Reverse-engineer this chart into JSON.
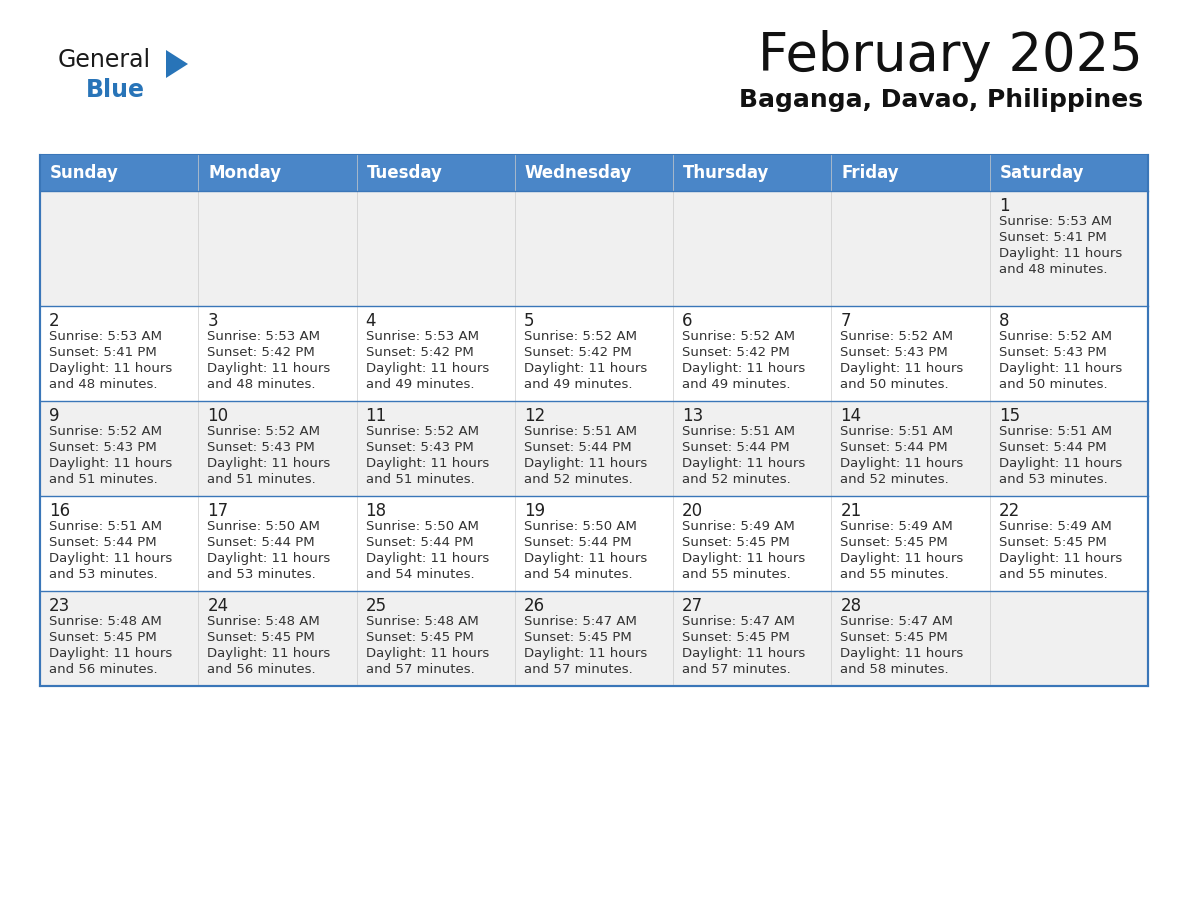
{
  "title": "February 2025",
  "subtitle": "Baganga, Davao, Philippines",
  "days_of_week": [
    "Sunday",
    "Monday",
    "Tuesday",
    "Wednesday",
    "Thursday",
    "Friday",
    "Saturday"
  ],
  "header_bg": "#4a86c8",
  "header_text_color": "#ffffff",
  "cell_bg_odd": "#f0f0f0",
  "cell_bg_even": "#ffffff",
  "border_color": "#3a76b8",
  "text_color": "#333333",
  "logo_general_color": "#1a1a1a",
  "logo_blue_color": "#2874b8",
  "logo_triangle_color": "#2874b8",
  "calendar_data": [
    [
      null,
      null,
      null,
      null,
      null,
      null,
      {
        "day": 1,
        "sunrise": "5:53 AM",
        "sunset": "5:41 PM",
        "daylight_hours": 11,
        "daylight_minutes": 48
      }
    ],
    [
      {
        "day": 2,
        "sunrise": "5:53 AM",
        "sunset": "5:41 PM",
        "daylight_hours": 11,
        "daylight_minutes": 48
      },
      {
        "day": 3,
        "sunrise": "5:53 AM",
        "sunset": "5:42 PM",
        "daylight_hours": 11,
        "daylight_minutes": 48
      },
      {
        "day": 4,
        "sunrise": "5:53 AM",
        "sunset": "5:42 PM",
        "daylight_hours": 11,
        "daylight_minutes": 49
      },
      {
        "day": 5,
        "sunrise": "5:52 AM",
        "sunset": "5:42 PM",
        "daylight_hours": 11,
        "daylight_minutes": 49
      },
      {
        "day": 6,
        "sunrise": "5:52 AM",
        "sunset": "5:42 PM",
        "daylight_hours": 11,
        "daylight_minutes": 49
      },
      {
        "day": 7,
        "sunrise": "5:52 AM",
        "sunset": "5:43 PM",
        "daylight_hours": 11,
        "daylight_minutes": 50
      },
      {
        "day": 8,
        "sunrise": "5:52 AM",
        "sunset": "5:43 PM",
        "daylight_hours": 11,
        "daylight_minutes": 50
      }
    ],
    [
      {
        "day": 9,
        "sunrise": "5:52 AM",
        "sunset": "5:43 PM",
        "daylight_hours": 11,
        "daylight_minutes": 51
      },
      {
        "day": 10,
        "sunrise": "5:52 AM",
        "sunset": "5:43 PM",
        "daylight_hours": 11,
        "daylight_minutes": 51
      },
      {
        "day": 11,
        "sunrise": "5:52 AM",
        "sunset": "5:43 PM",
        "daylight_hours": 11,
        "daylight_minutes": 51
      },
      {
        "day": 12,
        "sunrise": "5:51 AM",
        "sunset": "5:44 PM",
        "daylight_hours": 11,
        "daylight_minutes": 52
      },
      {
        "day": 13,
        "sunrise": "5:51 AM",
        "sunset": "5:44 PM",
        "daylight_hours": 11,
        "daylight_minutes": 52
      },
      {
        "day": 14,
        "sunrise": "5:51 AM",
        "sunset": "5:44 PM",
        "daylight_hours": 11,
        "daylight_minutes": 52
      },
      {
        "day": 15,
        "sunrise": "5:51 AM",
        "sunset": "5:44 PM",
        "daylight_hours": 11,
        "daylight_minutes": 53
      }
    ],
    [
      {
        "day": 16,
        "sunrise": "5:51 AM",
        "sunset": "5:44 PM",
        "daylight_hours": 11,
        "daylight_minutes": 53
      },
      {
        "day": 17,
        "sunrise": "5:50 AM",
        "sunset": "5:44 PM",
        "daylight_hours": 11,
        "daylight_minutes": 53
      },
      {
        "day": 18,
        "sunrise": "5:50 AM",
        "sunset": "5:44 PM",
        "daylight_hours": 11,
        "daylight_minutes": 54
      },
      {
        "day": 19,
        "sunrise": "5:50 AM",
        "sunset": "5:44 PM",
        "daylight_hours": 11,
        "daylight_minutes": 54
      },
      {
        "day": 20,
        "sunrise": "5:49 AM",
        "sunset": "5:45 PM",
        "daylight_hours": 11,
        "daylight_minutes": 55
      },
      {
        "day": 21,
        "sunrise": "5:49 AM",
        "sunset": "5:45 PM",
        "daylight_hours": 11,
        "daylight_minutes": 55
      },
      {
        "day": 22,
        "sunrise": "5:49 AM",
        "sunset": "5:45 PM",
        "daylight_hours": 11,
        "daylight_minutes": 55
      }
    ],
    [
      {
        "day": 23,
        "sunrise": "5:48 AM",
        "sunset": "5:45 PM",
        "daylight_hours": 11,
        "daylight_minutes": 56
      },
      {
        "day": 24,
        "sunrise": "5:48 AM",
        "sunset": "5:45 PM",
        "daylight_hours": 11,
        "daylight_minutes": 56
      },
      {
        "day": 25,
        "sunrise": "5:48 AM",
        "sunset": "5:45 PM",
        "daylight_hours": 11,
        "daylight_minutes": 57
      },
      {
        "day": 26,
        "sunrise": "5:47 AM",
        "sunset": "5:45 PM",
        "daylight_hours": 11,
        "daylight_minutes": 57
      },
      {
        "day": 27,
        "sunrise": "5:47 AM",
        "sunset": "5:45 PM",
        "daylight_hours": 11,
        "daylight_minutes": 57
      },
      {
        "day": 28,
        "sunrise": "5:47 AM",
        "sunset": "5:45 PM",
        "daylight_hours": 11,
        "daylight_minutes": 58
      },
      null
    ]
  ],
  "fig_width": 11.88,
  "fig_height": 9.18,
  "dpi": 100
}
